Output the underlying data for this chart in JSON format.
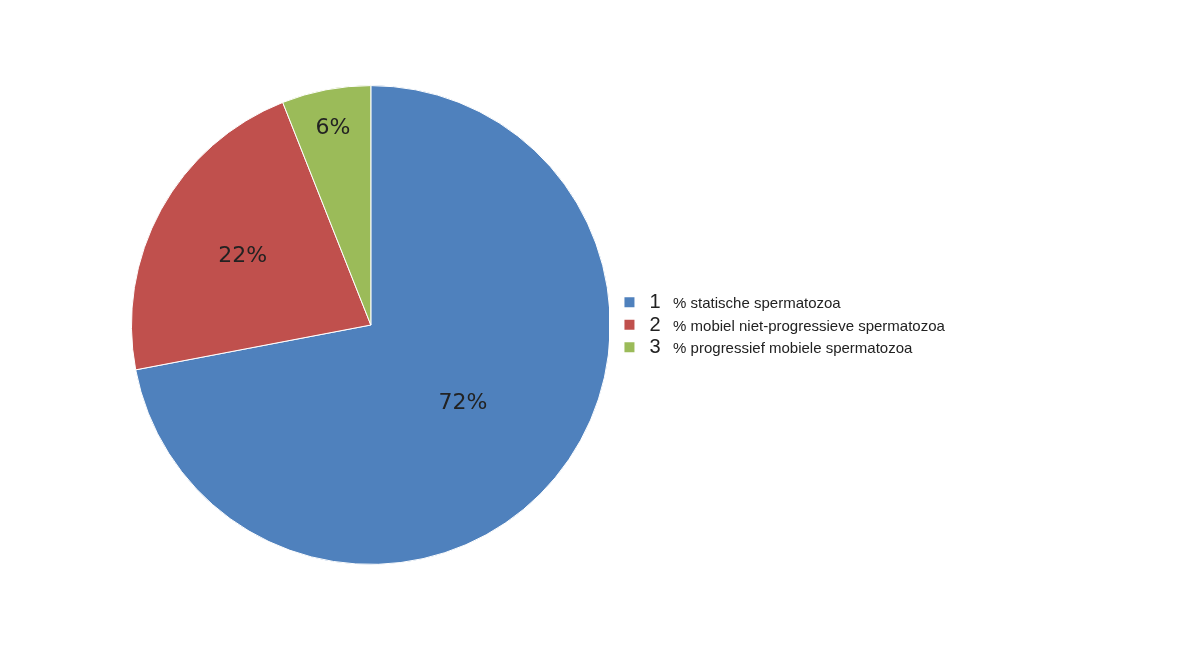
{
  "chart_data": {
    "type": "pie",
    "categories": [
      "1",
      "2",
      "3"
    ],
    "values": [
      72,
      22,
      6
    ],
    "colors": [
      "#4f81bd",
      "#c0504d",
      "#9bbb59"
    ],
    "value_labels": [
      "72%",
      "22%",
      "6%"
    ],
    "legend": "right",
    "annotations": [
      "% statische spermatozoa",
      "% mobiel niet-progressieve spermatozoa",
      "% progressief mobiele spermatozoa"
    ]
  }
}
